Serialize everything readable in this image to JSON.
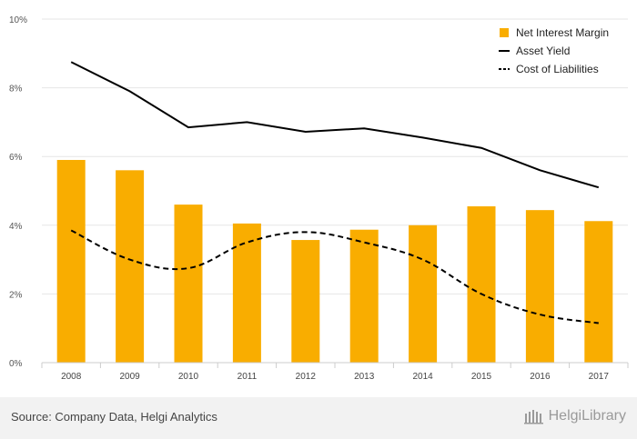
{
  "chart_data": {
    "type": "bar+line",
    "categories": [
      "2008",
      "2009",
      "2010",
      "2011",
      "2012",
      "2013",
      "2014",
      "2015",
      "2016",
      "2017"
    ],
    "series": [
      {
        "name": "Net Interest Margin",
        "kind": "bar",
        "color": "#F9AD00",
        "values": [
          5.9,
          5.6,
          4.6,
          4.05,
          3.57,
          3.87,
          4.0,
          4.55,
          4.44,
          4.12
        ]
      },
      {
        "name": "Asset Yield",
        "kind": "line",
        "style": "solid",
        "color": "#000000",
        "values": [
          8.75,
          7.9,
          6.85,
          7.0,
          6.72,
          6.82,
          6.55,
          6.25,
          5.6,
          5.1
        ]
      },
      {
        "name": "Cost of Liabilities",
        "kind": "line",
        "style": "dashed",
        "color": "#000000",
        "values": [
          3.85,
          3.0,
          2.75,
          3.5,
          3.8,
          3.5,
          3.0,
          2.0,
          1.4,
          1.15
        ]
      }
    ],
    "ylim": [
      0,
      10
    ],
    "yticks": [
      "0%",
      "2%",
      "4%",
      "6%",
      "8%",
      "10%"
    ],
    "grid": true,
    "legend_position": "top-right"
  },
  "footer": {
    "source": "Source: Company Data, Helgi Analytics",
    "brand": "HelgiLibrary"
  }
}
